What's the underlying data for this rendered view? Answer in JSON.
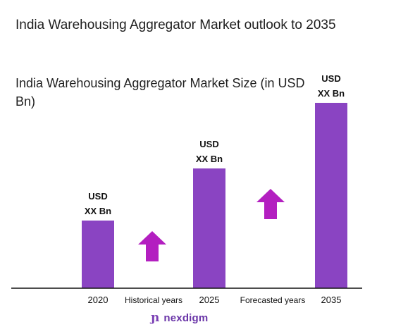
{
  "header": {
    "title": "India Warehousing Aggregator Market outlook to 2035",
    "subtitle": "India Warehousing Aggregator Market Size (in USD Bn)"
  },
  "colors": {
    "bar": "#8a44c2",
    "arrow": "#b31fc0",
    "axis": "#111111"
  },
  "chart_data": {
    "type": "bar",
    "categories": [
      "2020",
      "2025",
      "2035"
    ],
    "values": [
      1.0,
      1.77,
      2.74
    ],
    "value_note": "relative heights; data labels are placeholders",
    "data_labels": [
      [
        "USD",
        "XX Bn"
      ],
      [
        "USD",
        "XX Bn"
      ],
      [
        "USD",
        "XX Bn"
      ]
    ],
    "period_labels": [
      "Historical years",
      "Forecasted years"
    ],
    "grid": false,
    "legend": "none"
  },
  "footer": {
    "logo_text": "nexdigm",
    "logo_icon": "nexdigm-logo-icon"
  }
}
